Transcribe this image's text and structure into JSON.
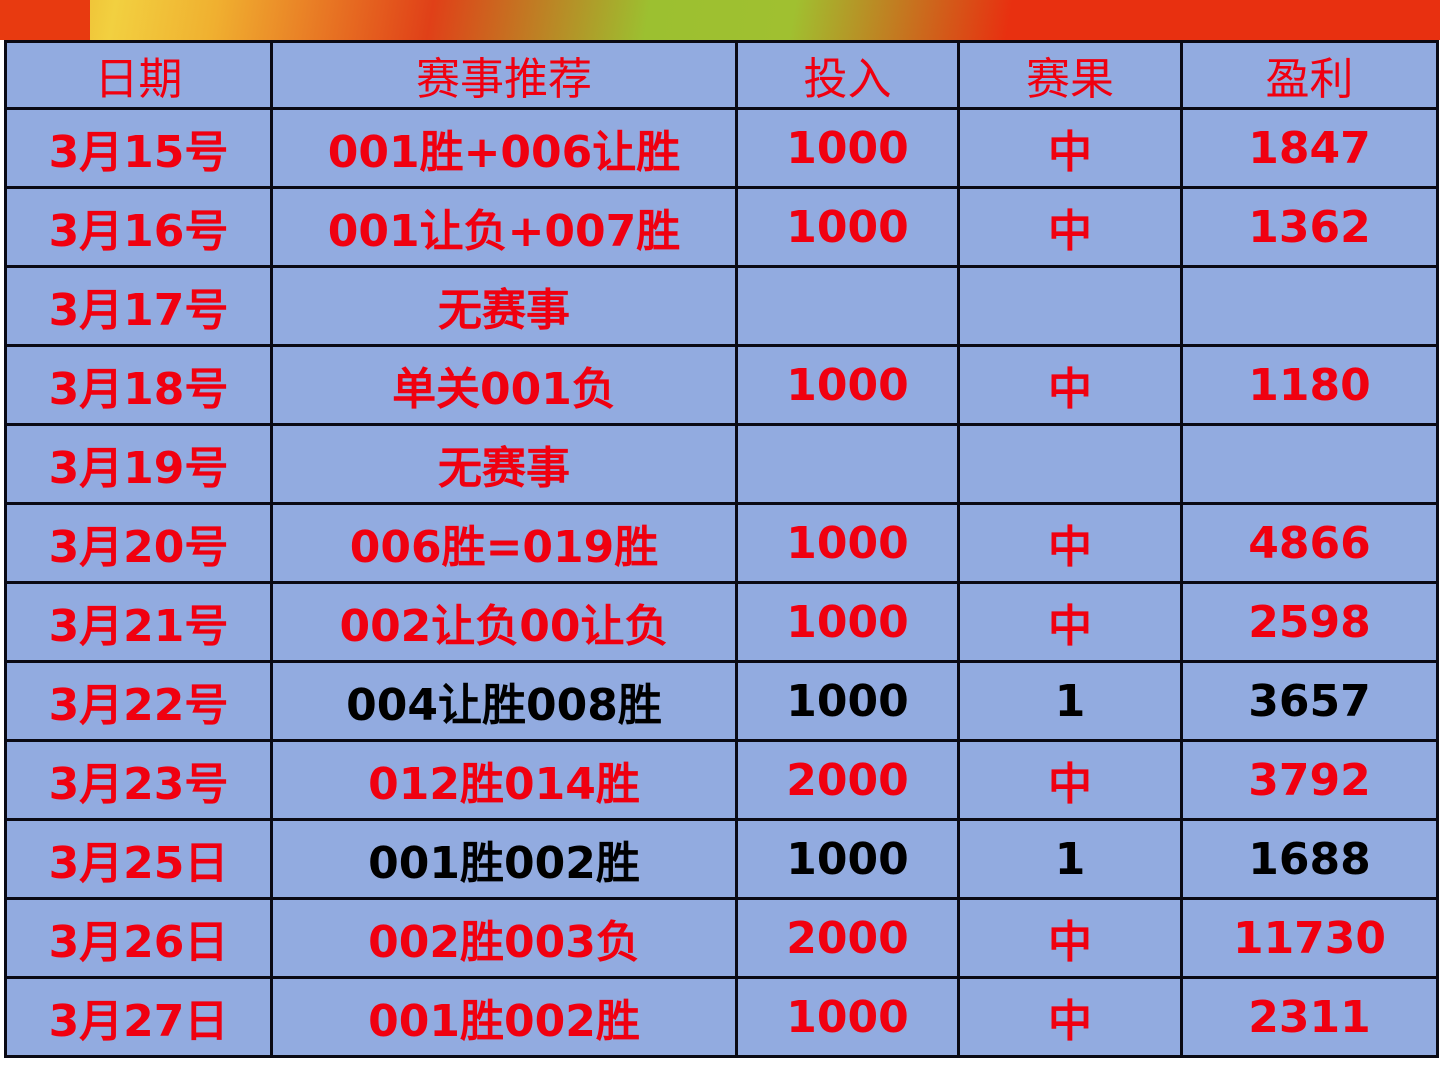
{
  "colors": {
    "header_text": "#f00010",
    "row_bg": "#92abe0",
    "hit_text": "#f00010",
    "miss_text": "#000000"
  },
  "table": {
    "headers": [
      "日期",
      "赛事推荐",
      "投入",
      "赛果",
      "盈利"
    ],
    "rows": [
      {
        "date": "3月15号",
        "pick": "001胜+006让胜",
        "stake": "1000",
        "result": "中",
        "profit": "1847",
        "hit": true
      },
      {
        "date": "3月16号",
        "pick": "001让负+007胜",
        "stake": "1000",
        "result": "中",
        "profit": "1362",
        "hit": true
      },
      {
        "date": "3月17号",
        "pick": "无赛事",
        "stake": "",
        "result": "",
        "profit": "",
        "hit": true
      },
      {
        "date": "3月18号",
        "pick": "单关001负",
        "stake": "1000",
        "result": "中",
        "profit": "1180",
        "hit": true
      },
      {
        "date": "3月19号",
        "pick": "无赛事",
        "stake": "",
        "result": "",
        "profit": "",
        "hit": true
      },
      {
        "date": "3月20号",
        "pick": "006胜=019胜",
        "stake": "1000",
        "result": "中",
        "profit": "4866",
        "hit": true
      },
      {
        "date": "3月21号",
        "pick": "002让负00让负",
        "stake": "1000",
        "result": "中",
        "profit": "2598",
        "hit": true
      },
      {
        "date": "3月22号",
        "pick": "004让胜008胜",
        "stake": "1000",
        "result": "1",
        "profit": "3657",
        "hit": false
      },
      {
        "date": "3月23号",
        "pick": "012胜014胜",
        "stake": "2000",
        "result": "中",
        "profit": "3792",
        "hit": true
      },
      {
        "date": "3月25日",
        "pick": "001胜002胜",
        "stake": "1000",
        "result": "1",
        "profit": "1688",
        "hit": false
      },
      {
        "date": "3月26日",
        "pick": "002胜003负",
        "stake": "2000",
        "result": "中",
        "profit": "11730",
        "hit": true
      },
      {
        "date": "3月27日",
        "pick": "001胜002胜",
        "stake": "1000",
        "result": "中",
        "profit": "2311",
        "hit": true
      }
    ]
  }
}
